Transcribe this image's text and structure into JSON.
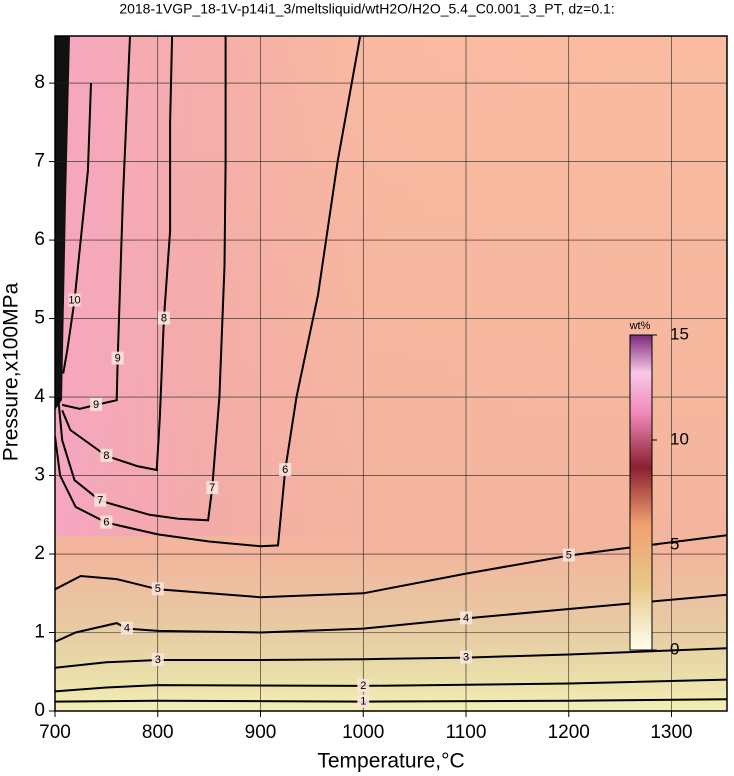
{
  "chart_data": {
    "type": "contour",
    "title": "2018-1VGP_18-1V-p14i1_3/meltsliquid/wtH2O/H2O_5.4_C0.001_3_PT, dz=0.1:",
    "x_label": "Temperature,°C",
    "y_label": "Pressure,x100MPa",
    "xlim": [
      700,
      1354
    ],
    "ylim": [
      0,
      8.6
    ],
    "xticks": [
      700,
      800,
      900,
      1000,
      1100,
      1200,
      1300
    ],
    "yticks": [
      0,
      1,
      2,
      3,
      4,
      5,
      6,
      7,
      8
    ],
    "grid": true,
    "contours": [
      {
        "level": 1,
        "x": [
          700,
          800,
          1000,
          1200,
          1354
        ],
        "y": [
          0.12,
          0.13,
          0.12,
          0.13,
          0.15
        ]
      },
      {
        "level": 2,
        "x": [
          700,
          750,
          800,
          1000,
          1200,
          1354
        ],
        "y": [
          0.25,
          0.3,
          0.33,
          0.32,
          0.35,
          0.4
        ]
      },
      {
        "level": 3,
        "x": [
          700,
          750,
          800,
          900,
          1000,
          1100,
          1200,
          1354
        ],
        "y": [
          0.55,
          0.62,
          0.65,
          0.65,
          0.66,
          0.68,
          0.72,
          0.8
        ]
      },
      {
        "level": 4,
        "x": [
          700,
          720,
          760,
          770,
          800,
          900,
          1000,
          1100,
          1200,
          1354
        ],
        "y": [
          0.88,
          1.0,
          1.12,
          1.05,
          1.02,
          1.0,
          1.05,
          1.18,
          1.3,
          1.48
        ]
      },
      {
        "level": 5,
        "x": [
          700,
          725,
          760,
          800,
          900,
          1000,
          1100,
          1200,
          1240,
          1354
        ],
        "y": [
          1.55,
          1.72,
          1.68,
          1.55,
          1.45,
          1.5,
          1.75,
          1.98,
          2.05,
          2.24
        ]
      },
      {
        "level": 6,
        "x": [
          997,
          975,
          956,
          935,
          924,
          917,
          900,
          850,
          800,
          750,
          720,
          705,
          700
        ],
        "y": [
          8.6,
          7.0,
          5.3,
          4.0,
          3.07,
          2.11,
          2.1,
          2.16,
          2.25,
          2.4,
          2.6,
          3.0,
          3.5
        ]
      },
      {
        "level": 7,
        "x": [
          866,
          866,
          865,
          860,
          853,
          849,
          820,
          792,
          744,
          719,
          707,
          703
        ],
        "y": [
          8.6,
          7.0,
          5.67,
          4.0,
          2.84,
          2.43,
          2.45,
          2.5,
          2.68,
          2.94,
          3.45,
          4.0
        ]
      },
      {
        "level": 8,
        "x": [
          814,
          812,
          812,
          806,
          802,
          799,
          780,
          750,
          715,
          707
        ],
        "y": [
          8.6,
          7.5,
          6.12,
          5.0,
          3.73,
          3.07,
          3.12,
          3.25,
          3.58,
          3.83
        ]
      },
      {
        "level": 9,
        "x": [
          773,
          766,
          761,
          760,
          740,
          724,
          707
        ],
        "y": [
          8.6,
          6.5,
          4.49,
          3.96,
          3.9,
          3.85,
          3.9
        ]
      },
      {
        "level": 10,
        "x": [
          735,
          732,
          725,
          719,
          712,
          708
        ],
        "y": [
          8.0,
          6.88,
          6.0,
          5.23,
          4.6,
          4.3
        ]
      }
    ],
    "colorbar": {
      "label": "wt%",
      "lim": [
        0,
        15
      ],
      "ticks": [
        0,
        5,
        10,
        15
      ]
    }
  }
}
